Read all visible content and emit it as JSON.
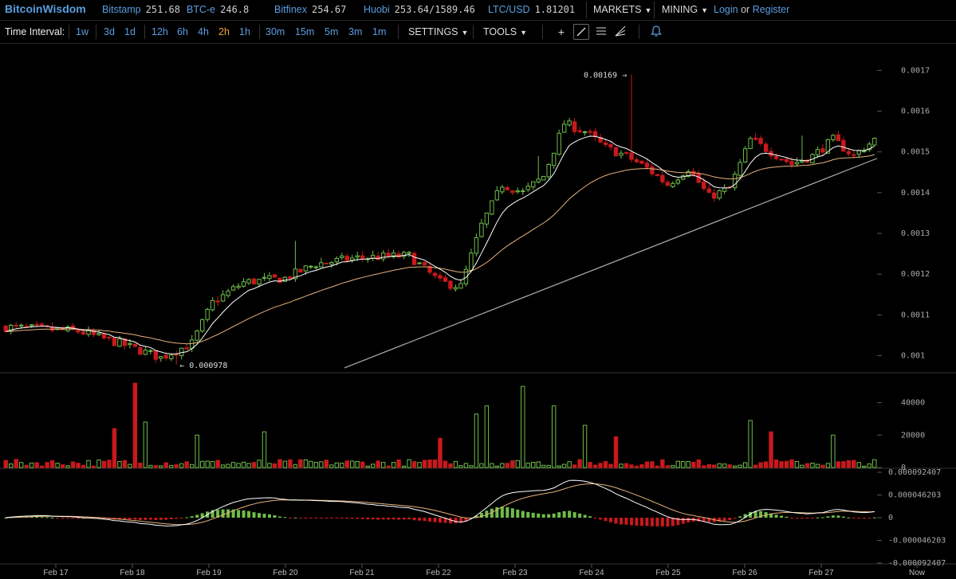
{
  "header": {
    "brand": "BitcoinWisdom",
    "tickers": [
      {
        "name": "Bitstamp",
        "value": "251.68"
      },
      {
        "name": "BTC-e",
        "value": "246.8"
      },
      {
        "name": "Bitfinex",
        "value": "254.67"
      },
      {
        "name": "Huobi",
        "value": "253.64/1589.46"
      },
      {
        "name": "LTC/USD",
        "value": "1.81201"
      }
    ],
    "markets_label": "MARKETS",
    "mining_label": "MINING",
    "login_label": "Login",
    "or_label": "or",
    "register_label": "Register"
  },
  "toolbar": {
    "time_interval_label": "Time Interval:",
    "intervals": [
      "1w",
      "3d",
      "1d",
      "12h",
      "6h",
      "4h",
      "2h",
      "1h",
      "30m",
      "15m",
      "5m",
      "3m",
      "1m"
    ],
    "active_interval": "2h",
    "settings_label": "SETTINGS",
    "tools_label": "TOOLS",
    "tool_icons": [
      "crosshair-icon",
      "trendline-icon",
      "horizontal-lines-icon",
      "fan-icon",
      "alert-bell-icon"
    ]
  },
  "colors": {
    "up": "#6fbd4a",
    "down": "#c8191c",
    "ema_fast": "#ffffff",
    "ema_slow": "#e7b27a",
    "accent": "#5b9de0",
    "active_interval": "#f2a53a"
  },
  "chart_data": [
    {
      "type": "candlestick",
      "name": "price",
      "ylim": [
        0.00096,
        0.00173
      ],
      "y_ticks": [
        "0.0017",
        "0.0016",
        "0.0015",
        "0.0014",
        "0.0013",
        "0.0012",
        "0.0011",
        "0.001"
      ],
      "annotations": [
        {
          "label": "0.00169 →",
          "value": 0.00169
        },
        {
          "label": "← 0.000978",
          "value": 0.000978
        }
      ],
      "x_labels": [
        "Feb 17",
        "Feb 18",
        "Feb 19",
        "Feb 20",
        "Feb 21",
        "Feb 22",
        "Feb 23",
        "Feb 24",
        "Feb 25",
        "Feb 26",
        "Feb 27",
        "Now"
      ],
      "close_waypoints": [
        [
          0,
          0.00107
        ],
        [
          14,
          0.00106
        ],
        [
          22,
          0.00103
        ],
        [
          30,
          0.000995
        ],
        [
          36,
          0.00103
        ],
        [
          40,
          0.00113
        ],
        [
          46,
          0.00118
        ],
        [
          54,
          0.00119
        ],
        [
          60,
          0.001225
        ],
        [
          68,
          0.00124
        ],
        [
          78,
          0.001245
        ],
        [
          84,
          0.00118
        ],
        [
          88,
          0.00117
        ],
        [
          92,
          0.00132
        ],
        [
          96,
          0.00142
        ],
        [
          100,
          0.0014
        ],
        [
          104,
          0.00144
        ],
        [
          108,
          0.00157
        ],
        [
          112,
          0.00155
        ],
        [
          116,
          0.00151
        ],
        [
          120,
          0.00149
        ],
        [
          124,
          0.00146
        ],
        [
          128,
          0.00142
        ],
        [
          132,
          0.00146
        ],
        [
          136,
          0.00139
        ],
        [
          140,
          0.00141
        ],
        [
          144,
          0.00153
        ],
        [
          148,
          0.0015
        ],
        [
          152,
          0.00147
        ],
        [
          156,
          0.00149
        ],
        [
          160,
          0.00153
        ],
        [
          164,
          0.00149
        ],
        [
          168,
          0.00153
        ]
      ],
      "trendline": [
        [
          0.00116,
          0.00097
        ],
        [
          1.0,
          0.001484
        ]
      ]
    },
    {
      "type": "bar",
      "name": "volume",
      "ylim": [
        0,
        55000
      ],
      "y_ticks": [
        "40000",
        "20000",
        "0"
      ],
      "spikes": [
        {
          "index": 21,
          "value": 24000
        },
        {
          "index": 25,
          "value": 52000
        },
        {
          "index": 27,
          "value": 28000
        },
        {
          "index": 37,
          "value": 20000
        },
        {
          "index": 50,
          "value": 22000
        },
        {
          "index": 84,
          "value": 18000
        },
        {
          "index": 91,
          "value": 33000
        },
        {
          "index": 93,
          "value": 38000
        },
        {
          "index": 100,
          "value": 50000
        },
        {
          "index": 106,
          "value": 38000
        },
        {
          "index": 112,
          "value": 26000
        },
        {
          "index": 118,
          "value": 19000
        },
        {
          "index": 144,
          "value": 29000
        },
        {
          "index": 148,
          "value": 22000
        },
        {
          "index": 160,
          "value": 20000
        }
      ]
    },
    {
      "type": "bar",
      "name": "macd",
      "ylim": [
        -9.2407e-05,
        9.2407e-05
      ],
      "y_ticks": [
        "0.000092407",
        "0.000046203",
        "0",
        "-0.000046203",
        "-0.000092407"
      ]
    }
  ]
}
